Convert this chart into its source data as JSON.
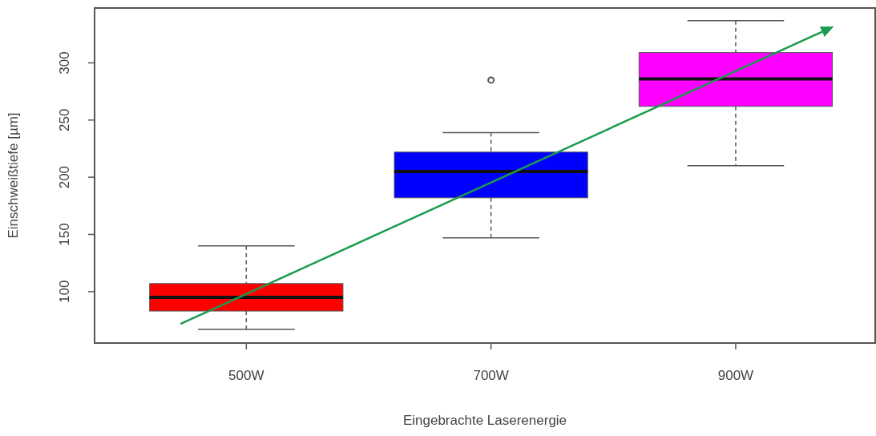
{
  "chart_data": {
    "type": "box",
    "xlabel": "Eingebrachte Laserenergie",
    "ylabel": "Einschweißtiefe [µm]",
    "categories": [
      "500W",
      "700W",
      "900W"
    ],
    "colors": [
      "#ff0000",
      "#0000ff",
      "#ff00ff"
    ],
    "boxes": [
      {
        "low": 67,
        "q1": 83,
        "median": 95,
        "q3": 107,
        "high": 140
      },
      {
        "low": 147,
        "q1": 182,
        "median": 205,
        "q3": 222,
        "high": 239,
        "outliers": [
          285
        ]
      },
      {
        "low": 210,
        "q1": 262,
        "median": 286,
        "q3": 309,
        "high": 337
      }
    ],
    "ylim": [
      55,
      348
    ],
    "yticks": [
      100,
      150,
      200,
      250,
      300
    ],
    "grid": false
  }
}
